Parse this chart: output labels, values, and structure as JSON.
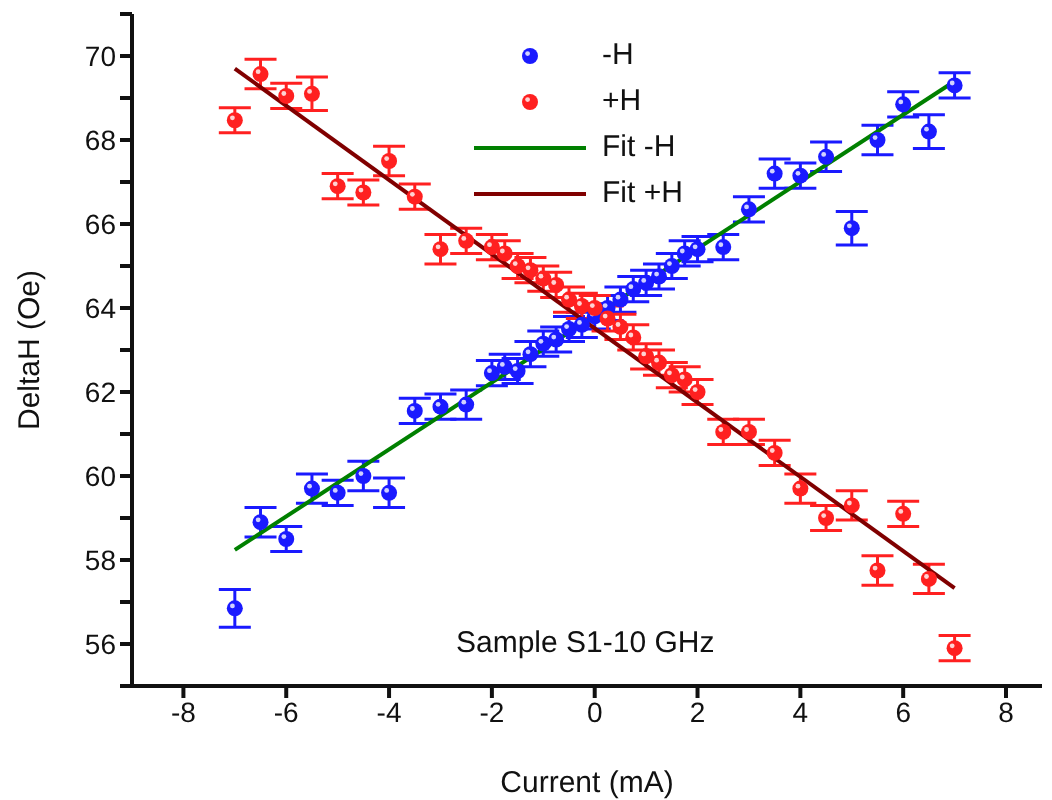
{
  "chart_data": {
    "type": "scatter",
    "xlabel": "Current (mA)",
    "ylabel": "DeltaH (Oe)",
    "annotations": [
      "Sample S1-10 GHz"
    ],
    "xlim": [
      -9,
      8.7
    ],
    "xticks": [
      -8,
      -6,
      -4,
      -2,
      0,
      2,
      4,
      6,
      8
    ],
    "ylim": [
      55,
      71
    ],
    "yticks": [
      {
        "value": 55,
        "label": null
      },
      56,
      {
        "value": 57,
        "label": null
      },
      58,
      {
        "value": 59,
        "label": null
      },
      60,
      {
        "value": 61,
        "label": null
      },
      62,
      {
        "value": 63,
        "label": null
      },
      64,
      {
        "value": 65,
        "label": null
      },
      66,
      {
        "value": 67,
        "label": null
      },
      68,
      {
        "value": 69,
        "label": null
      },
      70,
      {
        "value": 71,
        "label": null
      }
    ],
    "grid": false,
    "legend": "top",
    "marker": "circle",
    "series": [
      {
        "name": "-H",
        "color": "#1a1aff",
        "x": [
          -7,
          -6.5,
          -6,
          -5.5,
          -5,
          -4.5,
          -4,
          -3.5,
          -3,
          -2.5,
          -2,
          -1.75,
          -1.5,
          -1.25,
          -1,
          -0.75,
          -0.5,
          -0.25,
          0,
          0.25,
          0.5,
          0.75,
          1,
          1.25,
          1.5,
          1.75,
          2,
          2.5,
          3,
          3.5,
          4,
          4.5,
          5,
          5.5,
          6,
          6.5,
          7
        ],
        "values": [
          56.85,
          58.9,
          58.5,
          59.7,
          59.6,
          60.0,
          59.6,
          61.55,
          61.65,
          61.7,
          62.45,
          62.6,
          62.5,
          62.9,
          63.15,
          63.25,
          63.5,
          63.6,
          63.8,
          64.0,
          64.2,
          64.45,
          64.6,
          64.75,
          65.0,
          65.3,
          65.4,
          65.45,
          66.35,
          67.2,
          67.15,
          67.6,
          65.9,
          68.0,
          68.85,
          68.2,
          69.3
        ],
        "errors": [
          0.45,
          0.35,
          0.3,
          0.35,
          0.3,
          0.35,
          0.35,
          0.3,
          0.3,
          0.35,
          0.3,
          0.3,
          0.3,
          0.3,
          0.3,
          0.3,
          0.3,
          0.3,
          0.3,
          0.3,
          0.3,
          0.3,
          0.3,
          0.3,
          0.3,
          0.3,
          0.3,
          0.3,
          0.3,
          0.35,
          0.3,
          0.35,
          0.4,
          0.35,
          0.3,
          0.4,
          0.3
        ]
      },
      {
        "name": "+H",
        "color": "#ff2020",
        "x": [
          -7,
          -6.5,
          -6,
          -5.5,
          -5,
          -4.5,
          -4,
          -3.5,
          -3,
          -2.5,
          -2,
          -1.75,
          -1.5,
          -1.25,
          -1,
          -0.75,
          -0.5,
          -0.25,
          0,
          0.25,
          0.5,
          0.75,
          1,
          1.25,
          1.5,
          1.75,
          2,
          2.5,
          3,
          3.5,
          4,
          4.5,
          5,
          5.5,
          6,
          6.5,
          7
        ],
        "values": [
          68.47,
          69.57,
          69.05,
          69.1,
          66.9,
          66.75,
          67.5,
          66.65,
          65.4,
          65.6,
          65.45,
          65.3,
          65.0,
          64.9,
          64.7,
          64.55,
          64.2,
          64.05,
          64.0,
          63.75,
          63.55,
          63.3,
          62.85,
          62.7,
          62.4,
          62.3,
          62.0,
          61.05,
          61.05,
          60.55,
          59.7,
          59.0,
          59.3,
          57.75,
          59.1,
          57.55,
          55.9
        ],
        "errors": [
          0.3,
          0.35,
          0.3,
          0.4,
          0.3,
          0.3,
          0.35,
          0.3,
          0.35,
          0.3,
          0.3,
          0.3,
          0.3,
          0.3,
          0.3,
          0.3,
          0.3,
          0.3,
          0.3,
          0.3,
          0.3,
          0.3,
          0.3,
          0.3,
          0.3,
          0.3,
          0.3,
          0.3,
          0.3,
          0.3,
          0.35,
          0.3,
          0.35,
          0.35,
          0.3,
          0.35,
          0.3
        ]
      },
      {
        "name": "Fit -H",
        "color": "#008000",
        "type": "line",
        "marker": "none",
        "x": [
          -7,
          7
        ],
        "values": [
          58.24,
          69.4
        ]
      },
      {
        "name": "Fit +H",
        "color": "#800000",
        "type": "line",
        "marker": "none",
        "x": [
          -7,
          7
        ],
        "values": [
          69.7,
          57.33
        ]
      }
    ]
  }
}
